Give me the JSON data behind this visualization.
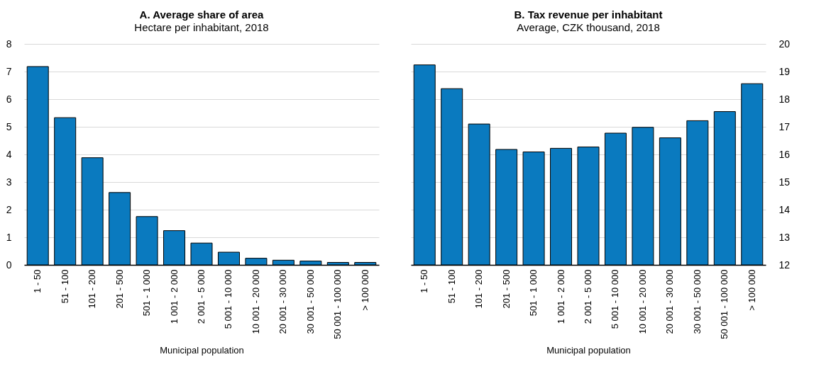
{
  "chart_data": [
    {
      "type": "bar",
      "title": "A. Average share of area",
      "subtitle": "Hectare per inhabitant, 2018",
      "xlabel": "Municipal population",
      "categories": [
        "1 - 50",
        "51 - 100",
        "101 - 200",
        "201 - 500",
        "501 - 1 000",
        "1 001 - 2 000",
        "2 001 - 5 000",
        "5 001 - 10 000",
        "10 001 - 20 000",
        "20 001 - 30 000",
        "30 001 - 50 000",
        "50 001 - 100 000",
        "> 100 000"
      ],
      "series": [
        {
          "color": "#0a7abf",
          "values": [
            7.18,
            5.33,
            3.88,
            2.62,
            1.75,
            1.24,
            0.79,
            0.46,
            0.24,
            0.17,
            0.14,
            0.09,
            0.09
          ]
        }
      ],
      "ylim": [
        0,
        8
      ],
      "yticks": [
        0,
        1,
        2,
        3,
        4,
        5,
        6,
        7,
        8
      ],
      "grid": "y"
    },
    {
      "type": "bar",
      "title": "B. Tax revenue per inhabitant",
      "subtitle": "Average, CZK thousand, 2018",
      "xlabel": "Municipal population",
      "categories": [
        "1 - 50",
        "51 - 100",
        "101 - 200",
        "201 - 500",
        "501 - 1 000",
        "1 001 - 2 000",
        "2 001 - 5 000",
        "5 001 - 10 000",
        "10 001 - 20 000",
        "20 001 - 30 000",
        "30 001 - 50 000",
        "50 001 - 100 000",
        "> 100 000"
      ],
      "series": [
        {
          "color": "#0a7abf",
          "axis": "y2",
          "values": [
            19.24,
            18.38,
            17.1,
            16.18,
            16.09,
            16.22,
            16.27,
            16.77,
            16.98,
            16.6,
            17.22,
            17.55,
            18.56
          ]
        }
      ],
      "y2lim": [
        12,
        20
      ],
      "y2ticks": [
        12,
        13,
        14,
        15,
        16,
        17,
        18,
        19,
        20
      ],
      "grid": "y"
    }
  ]
}
